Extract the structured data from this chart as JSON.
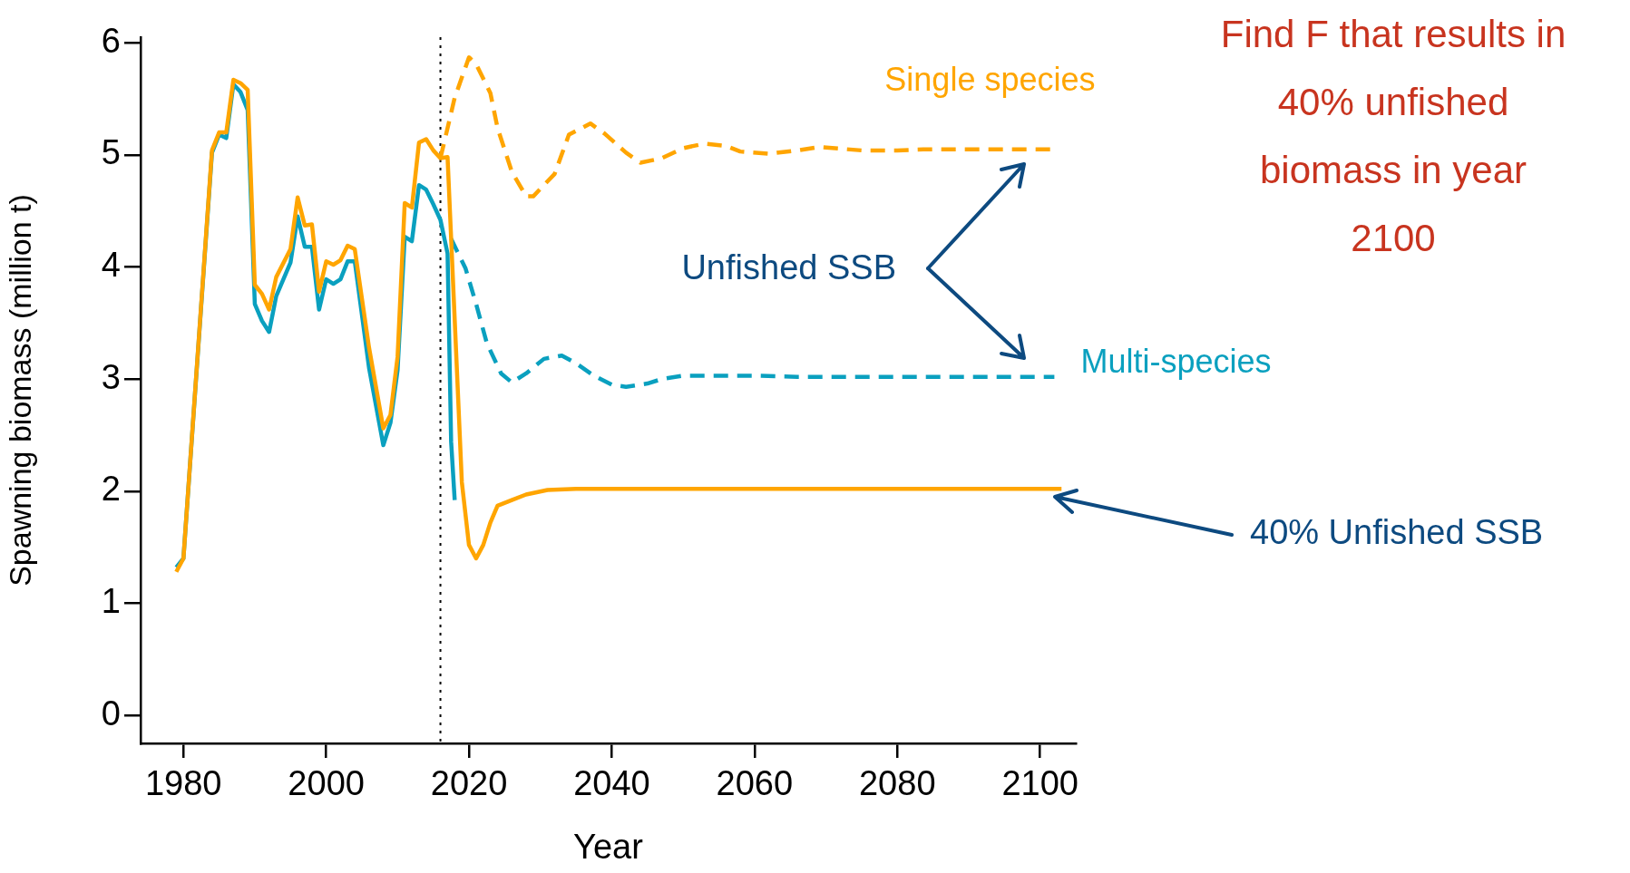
{
  "chart_data": {
    "type": "line",
    "xlabel": "Year",
    "ylabel": "Spawning biomass (million t)",
    "xlim": [
      1974,
      2105
    ],
    "ylim": [
      -0.25,
      6.05
    ],
    "xticks": [
      1980,
      2000,
      2020,
      2040,
      2060,
      2080,
      2100
    ],
    "yticks": [
      0,
      1,
      2,
      3,
      4,
      5,
      6
    ],
    "series": [
      {
        "color": "#ffa500",
        "line_style": "solid",
        "x": [
          1979,
          1980,
          1984,
          1985,
          1986,
          1987,
          1988,
          1989,
          1990,
          1991,
          1992,
          1993,
          1995,
          1996,
          1997,
          1998,
          1999,
          2000,
          2001,
          2002,
          2003,
          2004,
          2006,
          2008,
          2009,
          2010,
          2011,
          2012,
          2013,
          2014,
          2015,
          2016,
          2017,
          2019,
          2020,
          2021,
          2022,
          2023,
          2024,
          2026,
          2028,
          2031,
          2035,
          2041,
          2060,
          2080,
          2103
        ],
        "values": [
          1.28,
          1.4,
          5.04,
          5.2,
          5.2,
          5.67,
          5.64,
          5.58,
          3.84,
          3.76,
          3.62,
          3.91,
          4.16,
          4.62,
          4.37,
          4.38,
          3.78,
          4.05,
          4.02,
          4.06,
          4.19,
          4.16,
          3.28,
          2.56,
          2.68,
          3.2,
          4.57,
          4.53,
          5.11,
          5.14,
          5.04,
          4.97,
          4.98,
          2.08,
          1.52,
          1.4,
          1.52,
          1.72,
          1.87,
          1.92,
          1.97,
          2.01,
          2.02,
          2.02,
          2.02,
          2.02,
          2.02
        ]
      },
      {
        "color": "#0aa0bf",
        "line_style": "solid",
        "x": [
          1979,
          1980,
          1984,
          1985,
          1986,
          1987,
          1988,
          1989,
          1990,
          1991,
          1992,
          1993,
          1995,
          1996,
          1997,
          1998,
          1999,
          2000,
          2001,
          2002,
          2003,
          2004,
          2006,
          2008,
          2009,
          2010,
          2011,
          2012,
          2013,
          2014,
          2015,
          2016,
          2017,
          2017.5,
          2018
        ],
        "values": [
          1.32,
          1.4,
          5.02,
          5.18,
          5.15,
          5.63,
          5.56,
          5.4,
          3.67,
          3.52,
          3.42,
          3.74,
          4.04,
          4.45,
          4.18,
          4.18,
          3.62,
          3.89,
          3.85,
          3.89,
          4.05,
          4.05,
          3.1,
          2.41,
          2.61,
          3.08,
          4.27,
          4.23,
          4.73,
          4.69,
          4.56,
          4.42,
          4.12,
          2.44,
          1.92
        ]
      },
      {
        "name": "Single species",
        "color": "#ffa500",
        "line_style": "dashed",
        "x": [
          2016,
          2018,
          2020,
          2021,
          2023,
          2024,
          2026,
          2028,
          2029,
          2032,
          2034,
          2037,
          2039,
          2042,
          2044,
          2047,
          2050,
          2053,
          2056,
          2058,
          2062,
          2066,
          2069,
          2075,
          2080,
          2084,
          2090,
          2102
        ],
        "values": [
          4.97,
          5.51,
          5.87,
          5.81,
          5.55,
          5.24,
          4.85,
          4.63,
          4.63,
          4.83,
          5.18,
          5.28,
          5.19,
          5.02,
          4.93,
          4.97,
          5.06,
          5.1,
          5.08,
          5.03,
          5.01,
          5.04,
          5.07,
          5.04,
          5.04,
          5.05,
          5.05,
          5.05
        ]
      },
      {
        "name": "Multi-species",
        "color": "#0aa0bf",
        "line_style": "dashed",
        "x": [
          2017.5,
          2019.5,
          2021,
          2022.5,
          2024.5,
          2026,
          2028,
          2030.5,
          2033,
          2035,
          2037.5,
          2040,
          2042,
          2045,
          2047,
          2050,
          2053,
          2060,
          2066,
          2072,
          2078,
          2084,
          2090,
          2102
        ],
        "values": [
          4.25,
          3.99,
          3.67,
          3.32,
          3.05,
          2.97,
          3.05,
          3.18,
          3.21,
          3.14,
          3.03,
          2.95,
          2.93,
          2.96,
          3,
          3.03,
          3.03,
          3.03,
          3.02,
          3.02,
          3.02,
          3.02,
          3.02,
          3.02
        ]
      }
    ],
    "ref_lines": [
      {
        "axis": "x",
        "value": 2016,
        "color": "#000000",
        "line_style": "dotted"
      }
    ],
    "annotations": [
      "Find F that results in\n40% unfished\nbiomass in year\n2100",
      "Unfished SSB",
      "40% Unfished SSB"
    ]
  }
}
